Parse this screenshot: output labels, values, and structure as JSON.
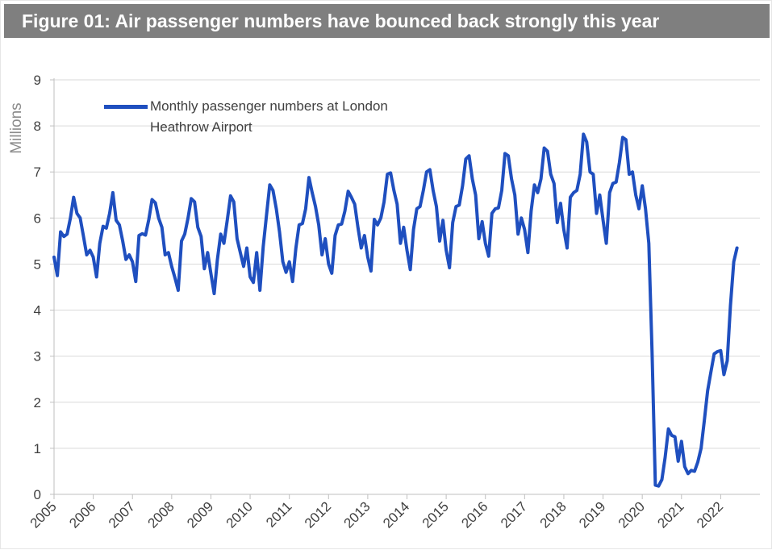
{
  "title": "Figure 01: Air passenger numbers have bounced back strongly this year",
  "chart_data": {
    "type": "line",
    "ylabel": "Millions",
    "ylim": [
      0,
      9
    ],
    "yticks": [
      "0",
      "1",
      "2",
      "3",
      "4",
      "5",
      "6",
      "7",
      "8",
      "9"
    ],
    "xticks": [
      "2005",
      "2006",
      "2007",
      "2008",
      "2009",
      "2010",
      "2011",
      "2012",
      "2013",
      "2014",
      "2015",
      "2016",
      "2017",
      "2018",
      "2019",
      "2020",
      "2021",
      "2022"
    ],
    "x_start": "2005-01",
    "grid": true,
    "legend_position": "top-left",
    "line_color": "#1f4fbf",
    "series": [
      {
        "name": "Monthly passenger numbers at London Heathrow Airport",
        "values": [
          5.15,
          4.75,
          5.7,
          5.6,
          5.65,
          6.0,
          6.45,
          6.1,
          6.0,
          5.6,
          5.2,
          5.3,
          5.15,
          4.72,
          5.45,
          5.82,
          5.78,
          6.1,
          6.55,
          5.95,
          5.85,
          5.5,
          5.1,
          5.2,
          5.05,
          4.62,
          5.62,
          5.66,
          5.63,
          5.97,
          6.4,
          6.33,
          6.0,
          5.8,
          5.2,
          5.25,
          4.95,
          4.7,
          4.43,
          5.5,
          5.65,
          6.0,
          6.42,
          6.35,
          5.8,
          5.6,
          4.9,
          5.25,
          4.8,
          4.36,
          5.1,
          5.65,
          5.45,
          5.95,
          6.48,
          6.35,
          5.55,
          5.25,
          4.95,
          5.35,
          4.72,
          4.6,
          5.25,
          4.43,
          5.38,
          6.05,
          6.72,
          6.6,
          6.2,
          5.7,
          5.05,
          4.82,
          5.05,
          4.62,
          5.35,
          5.85,
          5.88,
          6.2,
          6.88,
          6.55,
          6.25,
          5.85,
          5.2,
          5.55,
          5.0,
          4.8,
          5.62,
          5.85,
          5.87,
          6.15,
          6.58,
          6.45,
          6.3,
          5.8,
          5.35,
          5.62,
          5.15,
          4.85,
          5.97,
          5.85,
          6.0,
          6.35,
          6.95,
          6.98,
          6.6,
          6.3,
          5.45,
          5.8,
          5.3,
          4.88,
          5.75,
          6.2,
          6.25,
          6.6,
          7.0,
          7.05,
          6.6,
          6.25,
          5.5,
          5.95,
          5.3,
          4.92,
          5.9,
          6.25,
          6.28,
          6.7,
          7.28,
          7.35,
          6.85,
          6.5,
          5.55,
          5.92,
          5.45,
          5.17,
          6.1,
          6.2,
          6.22,
          6.6,
          7.4,
          7.35,
          6.85,
          6.5,
          5.65,
          6.0,
          5.75,
          5.25,
          6.15,
          6.72,
          6.55,
          6.85,
          7.52,
          7.45,
          6.95,
          6.75,
          5.9,
          6.32,
          5.75,
          5.35,
          6.45,
          6.55,
          6.6,
          6.95,
          7.82,
          7.65,
          7.0,
          6.95,
          6.1,
          6.5,
          5.95,
          5.45,
          6.55,
          6.75,
          6.78,
          7.2,
          7.75,
          7.7,
          6.95,
          7.0,
          6.5,
          6.2,
          6.7,
          6.2,
          5.45,
          3.1,
          0.2,
          0.18,
          0.32,
          0.8,
          1.42,
          1.28,
          1.25,
          0.72,
          1.15,
          0.6,
          0.45,
          0.52,
          0.5,
          0.7,
          1.0,
          1.6,
          2.25,
          2.65,
          3.05,
          3.1,
          3.12,
          2.6,
          2.9,
          4.1,
          5.05,
          5.35
        ]
      }
    ]
  }
}
